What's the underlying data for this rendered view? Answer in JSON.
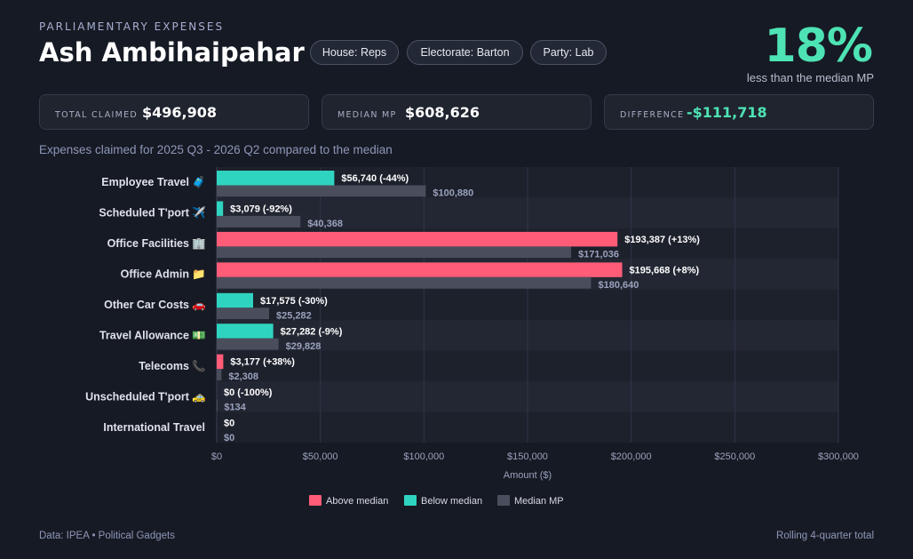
{
  "header": {
    "eyebrow": "PARLIAMENTARY EXPENSES",
    "mp_name": "Ash Ambihaipahar",
    "pills": [
      "House: Reps",
      "Electorate: Barton",
      "Party: Lab"
    ],
    "headline_pct": "18%",
    "headline_sub": "less than the median MP"
  },
  "cards": [
    {
      "label": "TOTAL CLAIMED",
      "value": "$496,908"
    },
    {
      "label": "MEDIAN MP",
      "value": "$608,626"
    },
    {
      "label": "DIFFERENCE",
      "value": "-$111,718"
    }
  ],
  "subtitle": "Expenses claimed for 2025 Q3 - 2026 Q2 compared to the median",
  "footer": {
    "left": "Data: IPEA • Political Gadgets",
    "right": "Rolling 4-quarter total"
  },
  "colors": {
    "above": "#ff5c78",
    "below": "#2fd4c0",
    "median": "#4a4e5c",
    "positive_text": "#4ee3b4"
  },
  "chart_data": {
    "type": "bar",
    "orientation": "horizontal",
    "categories": [
      "Employee Travel",
      "Scheduled T'port",
      "Office Facilities",
      "Office Admin",
      "Other Car Costs",
      "Travel Allowance",
      "Telecoms",
      "Unscheduled T'port",
      "International Travel"
    ],
    "category_icons": [
      "🧳",
      "✈️",
      "🏢",
      "📁",
      "🚗",
      "💵",
      "📞",
      "🚕",
      ""
    ],
    "series": [
      {
        "name": "MP",
        "values": [
          56740,
          3079,
          193387,
          195668,
          17575,
          27282,
          3177,
          0,
          0
        ]
      },
      {
        "name": "Median MP",
        "values": [
          100880,
          40368,
          171036,
          180640,
          25282,
          29828,
          2308,
          134,
          0
        ]
      }
    ],
    "value_labels": [
      "$56,740 (-44%)",
      "$3,079 (-92%)",
      "$193,387 (+13%)",
      "$195,668 (+8%)",
      "$17,575 (-30%)",
      "$27,282 (-9%)",
      "$3,177 (+38%)",
      "$0 (-100%)",
      "$0"
    ],
    "median_labels": [
      "$100,880",
      "$40,368",
      "$171,036",
      "$180,640",
      "$25,282",
      "$29,828",
      "$2,308",
      "$134",
      "$0"
    ],
    "xlabel": "Amount ($)",
    "xlim": [
      0,
      300000
    ],
    "xticks": [
      0,
      50000,
      100000,
      150000,
      200000,
      250000,
      300000
    ],
    "xtick_labels": [
      "$0",
      "$50,000",
      "$100,000",
      "$150,000",
      "$200,000",
      "$250,000",
      "$300,000"
    ],
    "legend": [
      "Above median",
      "Below median",
      "Median MP"
    ],
    "legend_position": "bottom",
    "grid": true
  }
}
